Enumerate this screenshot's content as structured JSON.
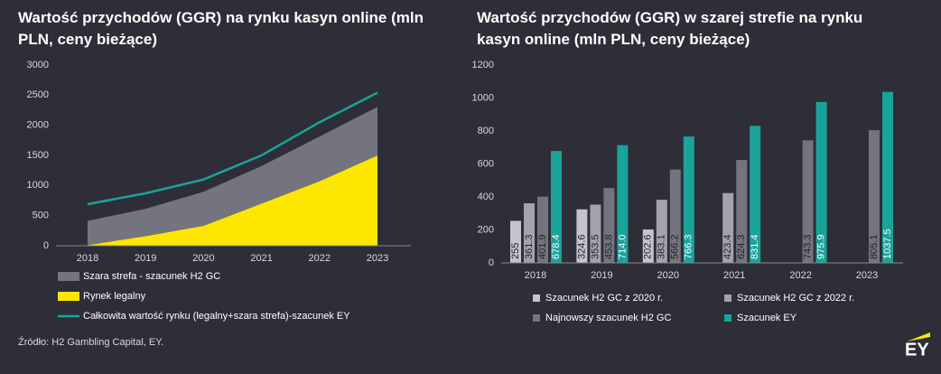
{
  "chart_data": [
    {
      "type": "area",
      "title": "Wartość przychodów (GGR) na rynku kasyn online (mln PLN, ceny bieżące)",
      "categories": [
        "2018",
        "2019",
        "2020",
        "2021",
        "2022",
        "2023"
      ],
      "series": [
        {
          "name": "Rynek legalny",
          "color": "#ffe600",
          "stack": true,
          "values": [
            10,
            160,
            330,
            700,
            1070,
            1500
          ]
        },
        {
          "name": "Szara strefa - szacunek H2 GC",
          "color": "#747480",
          "stack": true,
          "values": [
            401.9,
            453.8,
            566.2,
            624.3,
            743.3,
            805.1
          ]
        },
        {
          "name": "Całkowita wartość rynku (legalny+szara strefa)-szacunek EY",
          "color": "#1aa39a",
          "line": true,
          "values": [
            690,
            870,
            1100,
            1500,
            2050,
            2540
          ]
        }
      ],
      "legend_order": [
        1,
        0,
        2
      ],
      "ylim": [
        0,
        3000
      ],
      "yticks": [
        0,
        500,
        1000,
        1500,
        2000,
        2500,
        3000
      ],
      "grid": false
    },
    {
      "type": "bar",
      "title": "Wartość przychodów (GGR) w szarej strefie na rynku kasyn online (mln PLN, ceny bieżące)",
      "categories": [
        "2018",
        "2019",
        "2020",
        "2021",
        "2022",
        "2023"
      ],
      "series": [
        {
          "name": "Szacunek H2 GC z 2020 r.",
          "color": "#c4c4cd",
          "values": [
            255,
            324.6,
            202.6,
            null,
            null,
            null
          ]
        },
        {
          "name": "Szacunek H2 GC z 2022 r.",
          "color": "#a3a3b0",
          "values": [
            361.3,
            353.5,
            383.1,
            423.4,
            null,
            null
          ]
        },
        {
          "name": "Najnowszy szacunek H2 GC",
          "color": "#747480",
          "values": [
            401.9,
            453.8,
            566.2,
            624.3,
            743.3,
            805.1
          ]
        },
        {
          "name": "Szacunek EY",
          "color": "#1aa39a",
          "values": [
            678.4,
            714.0,
            766.3,
            831.4,
            975.9,
            1037.5
          ],
          "value_labels": [
            "678.4",
            "714.0",
            "766.3",
            "831.4",
            "975.9",
            "1037.5"
          ]
        }
      ],
      "ylim": [
        0,
        1200
      ],
      "yticks": [
        0,
        200,
        400,
        600,
        800,
        1000,
        1200
      ],
      "grid": false
    }
  ],
  "source": "Źródło: H2 Gambling Capital, EY.",
  "logo": "EY"
}
